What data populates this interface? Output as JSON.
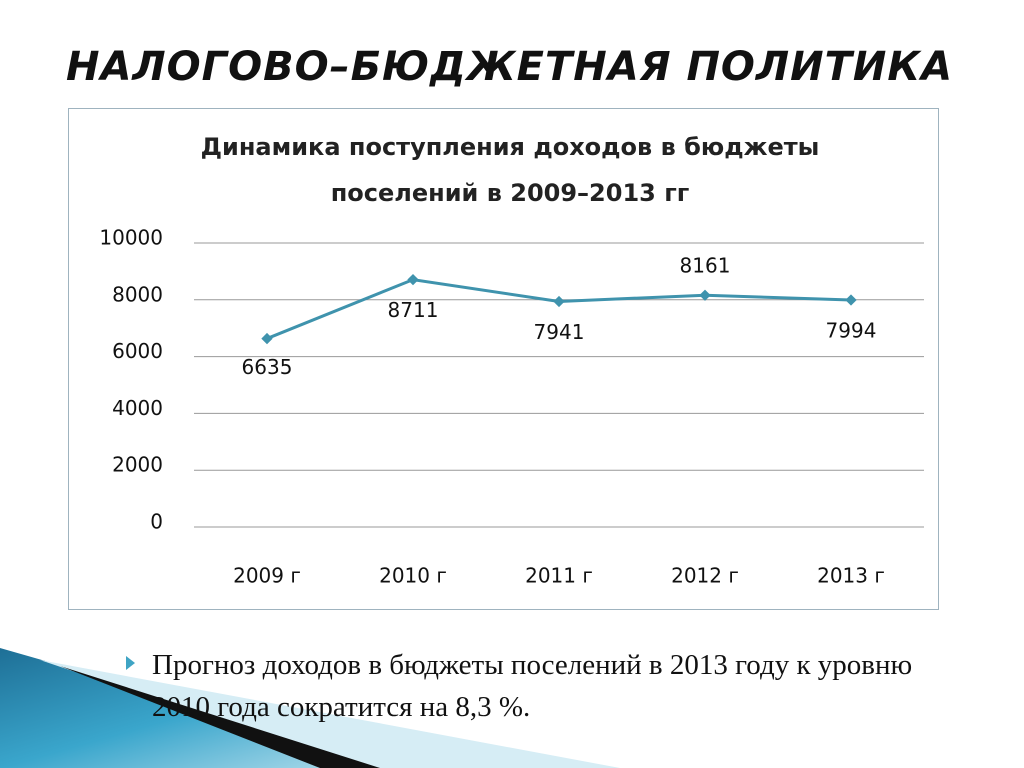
{
  "slide_title": "НАЛОГОВО–БЮДЖЕТНАЯ ПОЛИТИКА",
  "chart_data": {
    "type": "line",
    "title": "Динамика поступления доходов в бюджеты поселений в 2009–2013 гг",
    "categories": [
      "2009 г",
      "2010 г",
      "2011 г",
      "2012 г",
      "2013 г"
    ],
    "values": [
      6635,
      8711,
      7941,
      8161,
      7994
    ],
    "color": "#3f93ad",
    "ylim": [
      0,
      10000
    ],
    "yticks": [
      0,
      2000,
      4000,
      6000,
      8000,
      10000
    ],
    "grid": true
  },
  "bullet": "Прогноз доходов в бюджеты поселений в 2013 году к уровню 2010 года сократится  на 8,3 %."
}
